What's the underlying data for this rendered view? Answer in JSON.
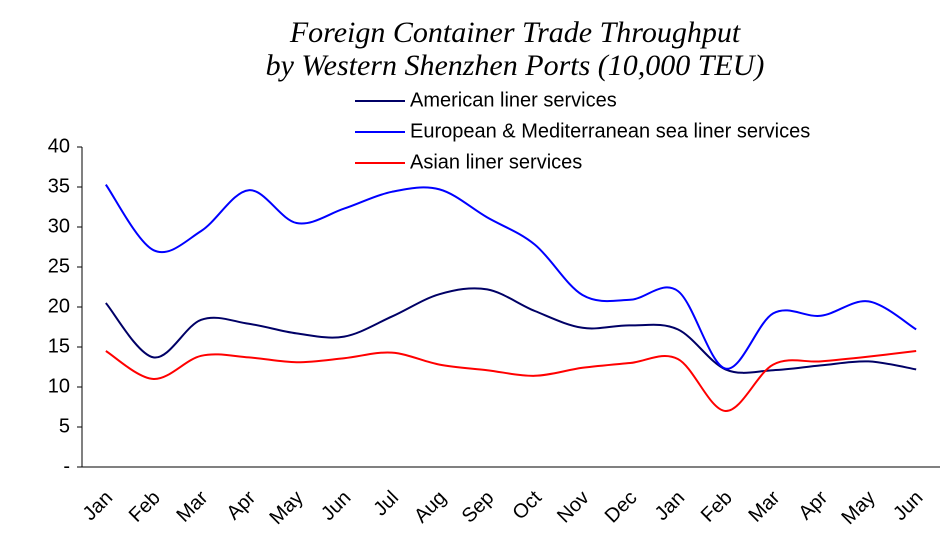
{
  "chart_data": {
    "type": "line",
    "title": [
      "Foreign Container Trade Throughput",
      "by Western Shenzhen Ports (10,000 TEU)"
    ],
    "categories": [
      "Jan",
      "Feb",
      "Mar",
      "Apr",
      "May",
      "Jun",
      "Jul",
      "Aug",
      "Sep",
      "Oct",
      "Nov",
      "Dec",
      "Jan",
      "Feb",
      "Mar",
      "Apr",
      "May",
      "Jun"
    ],
    "series": [
      {
        "name": "American liner services",
        "color": "#000066",
        "values": [
          20.5,
          13.7,
          18.4,
          17.9,
          16.7,
          16.3,
          18.8,
          21.6,
          22.2,
          19.5,
          17.4,
          17.7,
          17.2,
          12.2,
          12.1,
          12.7,
          13.2,
          12.2
        ]
      },
      {
        "name": "European & Mediterranean sea liner services",
        "color": "#0000ff",
        "values": [
          35.3,
          27.1,
          29.5,
          34.6,
          30.5,
          32.3,
          34.4,
          34.7,
          31.2,
          27.8,
          21.5,
          20.9,
          22.0,
          12.3,
          19.2,
          18.9,
          20.7,
          17.2
        ]
      },
      {
        "name": "Asian liner services",
        "color": "#ff0000",
        "values": [
          14.5,
          11.0,
          13.9,
          13.7,
          13.1,
          13.6,
          14.3,
          12.8,
          12.1,
          11.4,
          12.4,
          13.0,
          13.5,
          7.0,
          12.8,
          13.2,
          13.8,
          14.5
        ]
      }
    ],
    "ylim": [
      0,
      40
    ],
    "yticks": [
      {
        "value": 0,
        "label": "-"
      },
      5,
      10,
      15,
      20,
      25,
      30,
      35,
      40
    ],
    "grid": false,
    "smooth": true,
    "legend": "top-right"
  }
}
